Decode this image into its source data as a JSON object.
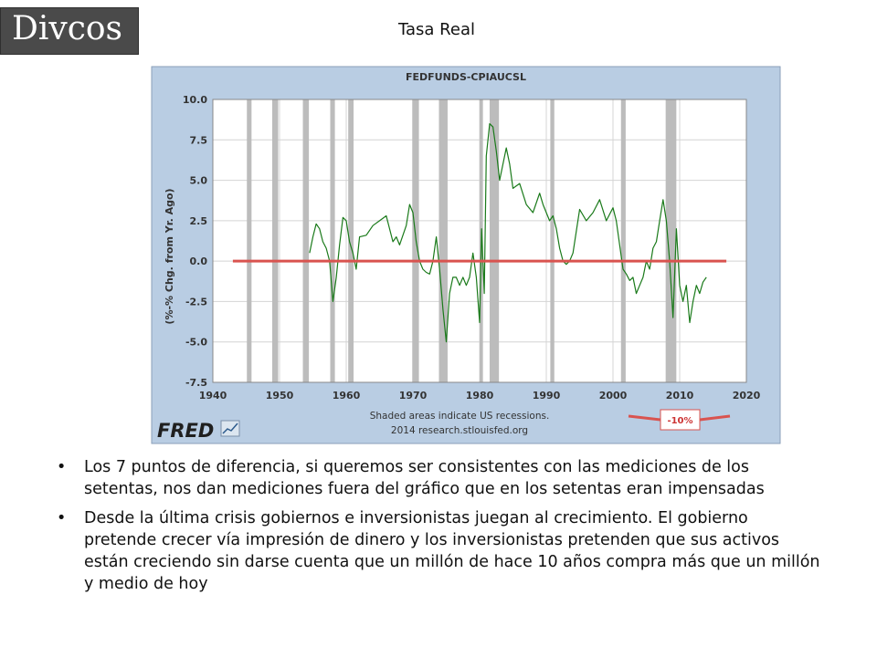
{
  "logo_text": "Divcos",
  "slide_title": "Tasa Real",
  "chart_data": {
    "type": "line",
    "title": "FEDFUNDS-CPIAUCSL",
    "ylabel": "(%-% Chg. from Yr. Ago)",
    "xlabel": "",
    "xlim": [
      1940,
      2020
    ],
    "ylim": [
      -7.5,
      10.0
    ],
    "x_ticks": [
      1940,
      1950,
      1960,
      1970,
      1980,
      1990,
      2000,
      2010,
      2020
    ],
    "y_ticks": [
      "10.0",
      "7.5",
      "5.0",
      "2.5",
      "0.0",
      "-2.5",
      "-5.0",
      "-7.5"
    ],
    "recessions": [
      [
        1945.1,
        1945.8
      ],
      [
        1948.9,
        1949.8
      ],
      [
        1953.5,
        1954.4
      ],
      [
        1957.6,
        1958.3
      ],
      [
        1960.3,
        1961.1
      ],
      [
        1969.9,
        1970.9
      ],
      [
        1973.9,
        1975.2
      ],
      [
        1980.0,
        1980.5
      ],
      [
        1981.5,
        1982.9
      ],
      [
        1990.6,
        1991.2
      ],
      [
        2001.2,
        2001.9
      ],
      [
        2007.9,
        2009.5
      ]
    ],
    "grid": true,
    "series": [
      {
        "x": [
          1954.5,
          1955.0,
          1955.5,
          1956.0,
          1956.5,
          1957.0,
          1957.5,
          1958.0,
          1958.5,
          1959.0,
          1959.5,
          1960.0,
          1960.5,
          1961.0,
          1961.5,
          1962.0,
          1963.0,
          1964.0,
          1965.0,
          1966.0,
          1967.0,
          1967.5,
          1968.0,
          1969.0,
          1969.5,
          1970.0,
          1970.5,
          1971.0,
          1971.5,
          1972.0,
          1972.5,
          1973.0,
          1973.5,
          1974.0,
          1974.5,
          1975.0,
          1975.5,
          1976.0,
          1976.5,
          1977.0,
          1977.5,
          1978.0,
          1978.5,
          1979.0,
          1979.5,
          1980.0,
          1980.3,
          1980.7,
          1981.0,
          1981.5,
          1982.0,
          1982.5,
          1983.0,
          1984.0,
          1984.5,
          1985.0,
          1986.0,
          1987.0,
          1988.0,
          1989.0,
          1989.5,
          1990.0,
          1990.5,
          1991.0,
          1991.5,
          1992.0,
          1992.5,
          1993.0,
          1993.5,
          1994.0,
          1995.0,
          1996.0,
          1997.0,
          1998.0,
          1999.0,
          2000.0,
          2000.5,
          2001.0,
          2001.5,
          2002.0,
          2002.5,
          2003.0,
          2003.5,
          2004.0,
          2004.5,
          2005.0,
          2005.5,
          2006.0,
          2006.5,
          2007.0,
          2007.5,
          2008.0,
          2008.5,
          2009.0,
          2009.5,
          2010.0,
          2010.5,
          2011.0,
          2011.5,
          2012.0,
          2012.5,
          2013.0,
          2013.5,
          2014.0
        ],
        "y": [
          0.5,
          1.5,
          2.3,
          2.0,
          1.2,
          0.8,
          0.0,
          -2.5,
          -1.0,
          1.0,
          2.7,
          2.5,
          1.2,
          0.5,
          -0.5,
          1.5,
          1.6,
          2.2,
          2.5,
          2.8,
          1.2,
          1.5,
          1.0,
          2.2,
          3.5,
          3.0,
          1.2,
          0.0,
          -0.5,
          -0.7,
          -0.8,
          0.0,
          1.5,
          -0.5,
          -3.0,
          -5.0,
          -2.0,
          -1.0,
          -1.0,
          -1.5,
          -1.0,
          -1.5,
          -1.0,
          0.5,
          -1.0,
          -3.8,
          2.0,
          -2.0,
          6.5,
          8.5,
          8.3,
          6.8,
          5.0,
          7.0,
          6.0,
          4.5,
          4.8,
          3.5,
          3.0,
          4.2,
          3.5,
          3.0,
          2.5,
          2.8,
          2.0,
          0.8,
          0.0,
          -0.2,
          0.0,
          0.5,
          3.2,
          2.5,
          3.0,
          3.8,
          2.5,
          3.3,
          2.5,
          1.0,
          -0.5,
          -0.8,
          -1.2,
          -1.0,
          -2.0,
          -1.5,
          -1.0,
          0.0,
          -0.5,
          0.8,
          1.2,
          2.5,
          3.8,
          2.5,
          0.0,
          -3.5,
          2.0,
          -1.5,
          -2.5,
          -1.5,
          -3.8,
          -2.5,
          -1.5,
          -2.0,
          -1.3,
          -1.0
        ]
      }
    ],
    "reference_line": {
      "value": 0.0,
      "from": 1943,
      "to": 2017,
      "color": "#d9534f"
    },
    "annotation": {
      "text": "-10%",
      "color": "#cc3333"
    },
    "source_line1": "Shaded areas indicate US recessions.",
    "source_line2": "2014 research.stlouisfed.org",
    "fred_logo": "FRED",
    "colors": {
      "outer_bg": "#b9cde3",
      "plot_bg": "#ffffff",
      "line": "#1a7a1a",
      "recession": "#bcbcbc",
      "grid": "#d4d4d4"
    }
  },
  "bullets": [
    {
      "marker": "•",
      "text": "Los 7 puntos de diferencia, si queremos ser consistentes con las mediciones de los setentas, nos dan mediciones fuera del gráfico que en los setentas eran impensadas"
    },
    {
      "marker": "•",
      "text": "Desde la última crisis gobiernos e inversionistas juegan al crecimiento. El gobierno pretende crecer vía impresión de dinero y los inversionistas pretenden que sus activos están creciendo sin darse cuenta que un millón de hace 10 años compra más que un millón y medio de hoy"
    }
  ]
}
